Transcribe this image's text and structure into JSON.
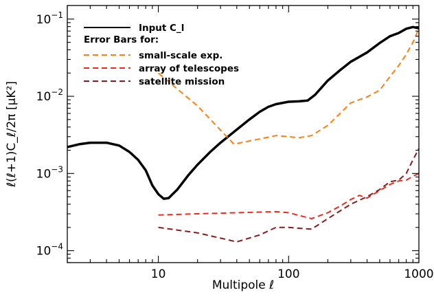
{
  "chart_data": {
    "type": "line",
    "title": "",
    "xlabel": "Multipole ℓ",
    "ylabel": "ℓ(ℓ+1)C_ℓ/2π [μK²]",
    "xscale": "log",
    "yscale": "log",
    "xlim": [
      2,
      1000
    ],
    "ylim": [
      7e-05,
      0.15
    ],
    "grid": false,
    "legend_placement": "top-left",
    "legend_header": "Error Bars for:",
    "x_ticks": [
      {
        "value": 10,
        "label": "10"
      },
      {
        "value": 100,
        "label": "100"
      },
      {
        "value": 1000,
        "label": "1000"
      }
    ],
    "y_ticks": [
      {
        "value": 0.0001,
        "base": "10",
        "exp": "−4"
      },
      {
        "value": 0.001,
        "base": "10",
        "exp": "−3"
      },
      {
        "value": 0.01,
        "base": "10",
        "exp": "−2"
      },
      {
        "value": 0.1,
        "base": "10",
        "exp": "−1"
      }
    ],
    "series": [
      {
        "name": "Input C_l",
        "color": "#000000",
        "dash": "solid",
        "width": 3.5,
        "points": [
          [
            2,
            0.0022
          ],
          [
            2.5,
            0.0024
          ],
          [
            3,
            0.0025
          ],
          [
            4,
            0.0025
          ],
          [
            5,
            0.0023
          ],
          [
            6,
            0.0019
          ],
          [
            7,
            0.0015
          ],
          [
            8,
            0.0011
          ],
          [
            9,
            0.0007
          ],
          [
            10,
            0.00054
          ],
          [
            11,
            0.00047
          ],
          [
            12,
            0.00048
          ],
          [
            14,
            0.00062
          ],
          [
            17,
            0.00095
          ],
          [
            20,
            0.0013
          ],
          [
            25,
            0.0019
          ],
          [
            30,
            0.0025
          ],
          [
            40,
            0.0037
          ],
          [
            50,
            0.005
          ],
          [
            60,
            0.0063
          ],
          [
            70,
            0.0073
          ],
          [
            80,
            0.0079
          ],
          [
            100,
            0.0085
          ],
          [
            120,
            0.0086
          ],
          [
            140,
            0.0088
          ],
          [
            160,
            0.0105
          ],
          [
            200,
            0.016
          ],
          [
            250,
            0.022
          ],
          [
            300,
            0.028
          ],
          [
            400,
            0.037
          ],
          [
            500,
            0.049
          ],
          [
            600,
            0.06
          ],
          [
            700,
            0.066
          ],
          [
            800,
            0.075
          ],
          [
            900,
            0.079
          ],
          [
            1000,
            0.076
          ]
        ]
      },
      {
        "name": "small-scale exp.",
        "color": "#ff7f0e",
        "dash": "dashed",
        "width": 2,
        "points": [
          [
            10,
            0.02
          ],
          [
            20,
            0.0075
          ],
          [
            38,
            0.0024
          ],
          [
            60,
            0.0028
          ],
          [
            80,
            0.0031
          ],
          [
            100,
            0.003
          ],
          [
            120,
            0.0029
          ],
          [
            150,
            0.0031
          ],
          [
            200,
            0.0042
          ],
          [
            300,
            0.0082
          ],
          [
            400,
            0.0098
          ],
          [
            500,
            0.012
          ],
          [
            600,
            0.018
          ],
          [
            700,
            0.025
          ],
          [
            800,
            0.035
          ],
          [
            900,
            0.05
          ],
          [
            1000,
            0.075
          ]
        ]
      },
      {
        "name": "array of telescopes",
        "color": "#ee2a1a",
        "dash": "dashed",
        "width": 2,
        "points": [
          [
            10,
            0.00029
          ],
          [
            20,
            0.0003
          ],
          [
            40,
            0.00031
          ],
          [
            80,
            0.00032
          ],
          [
            100,
            0.00031
          ],
          [
            150,
            0.00026
          ],
          [
            200,
            0.00031
          ],
          [
            250,
            0.00038
          ],
          [
            300,
            0.00046
          ],
          [
            350,
            0.00052
          ],
          [
            400,
            0.00048
          ],
          [
            500,
            0.0006
          ],
          [
            600,
            0.00072
          ],
          [
            700,
            0.0008
          ],
          [
            800,
            0.00082
          ],
          [
            900,
            0.00092
          ],
          [
            1000,
            0.001
          ]
        ]
      },
      {
        "name": "satellite mission",
        "color": "#8b1a1a",
        "dash": "dashed",
        "width": 2,
        "points": [
          [
            10,
            0.0002
          ],
          [
            20,
            0.00017
          ],
          [
            40,
            0.00013
          ],
          [
            60,
            0.00016
          ],
          [
            80,
            0.0002
          ],
          [
            100,
            0.0002
          ],
          [
            150,
            0.00019
          ],
          [
            200,
            0.00026
          ],
          [
            300,
            0.0004
          ],
          [
            400,
            0.0005
          ],
          [
            500,
            0.00062
          ],
          [
            600,
            0.00078
          ],
          [
            700,
            0.00082
          ],
          [
            800,
            0.001
          ],
          [
            900,
            0.0015
          ],
          [
            1000,
            0.0021
          ]
        ]
      }
    ]
  }
}
